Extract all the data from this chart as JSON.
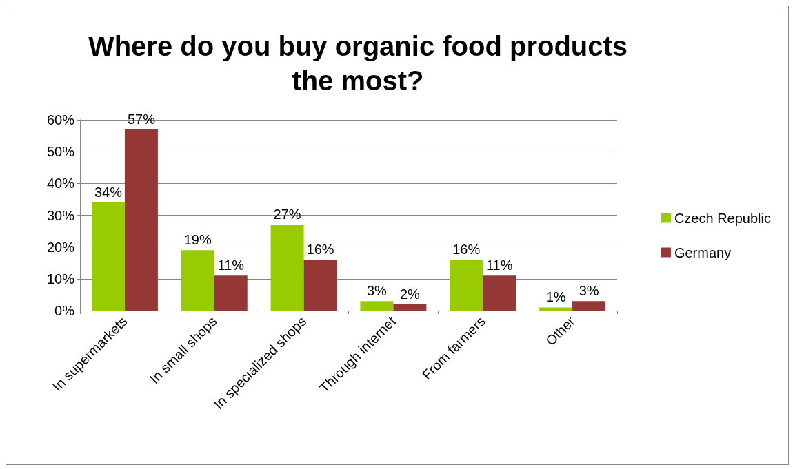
{
  "chart_data": {
    "type": "bar",
    "title": "Where do you buy organic food products\nthe most?",
    "categories": [
      "In supermarkets",
      "In small shops",
      "In specialized shops",
      "Through internet",
      "From farmers",
      "Other"
    ],
    "series": [
      {
        "name": "Czech Republic",
        "color": "#99cc00",
        "values": [
          34,
          19,
          27,
          3,
          16,
          1
        ],
        "value_labels": [
          "34%",
          "19%",
          "27%",
          "3%",
          "16%",
          "1%"
        ]
      },
      {
        "name": "Germany",
        "color": "#953735",
        "values": [
          57,
          11,
          16,
          2,
          11,
          3
        ],
        "value_labels": [
          "57%",
          "11%",
          "16%",
          "2%",
          "11%",
          "3%"
        ]
      }
    ],
    "ylim": [
      0,
      60
    ],
    "yticks": [
      {
        "value": 0,
        "label": "0%"
      },
      {
        "value": 10,
        "label": "10%"
      },
      {
        "value": 20,
        "label": "20%"
      },
      {
        "value": 30,
        "label": "30%"
      },
      {
        "value": 40,
        "label": "40%"
      },
      {
        "value": 50,
        "label": "50%"
      },
      {
        "value": 60,
        "label": "60%"
      }
    ],
    "grid": "y",
    "legend": "right"
  }
}
